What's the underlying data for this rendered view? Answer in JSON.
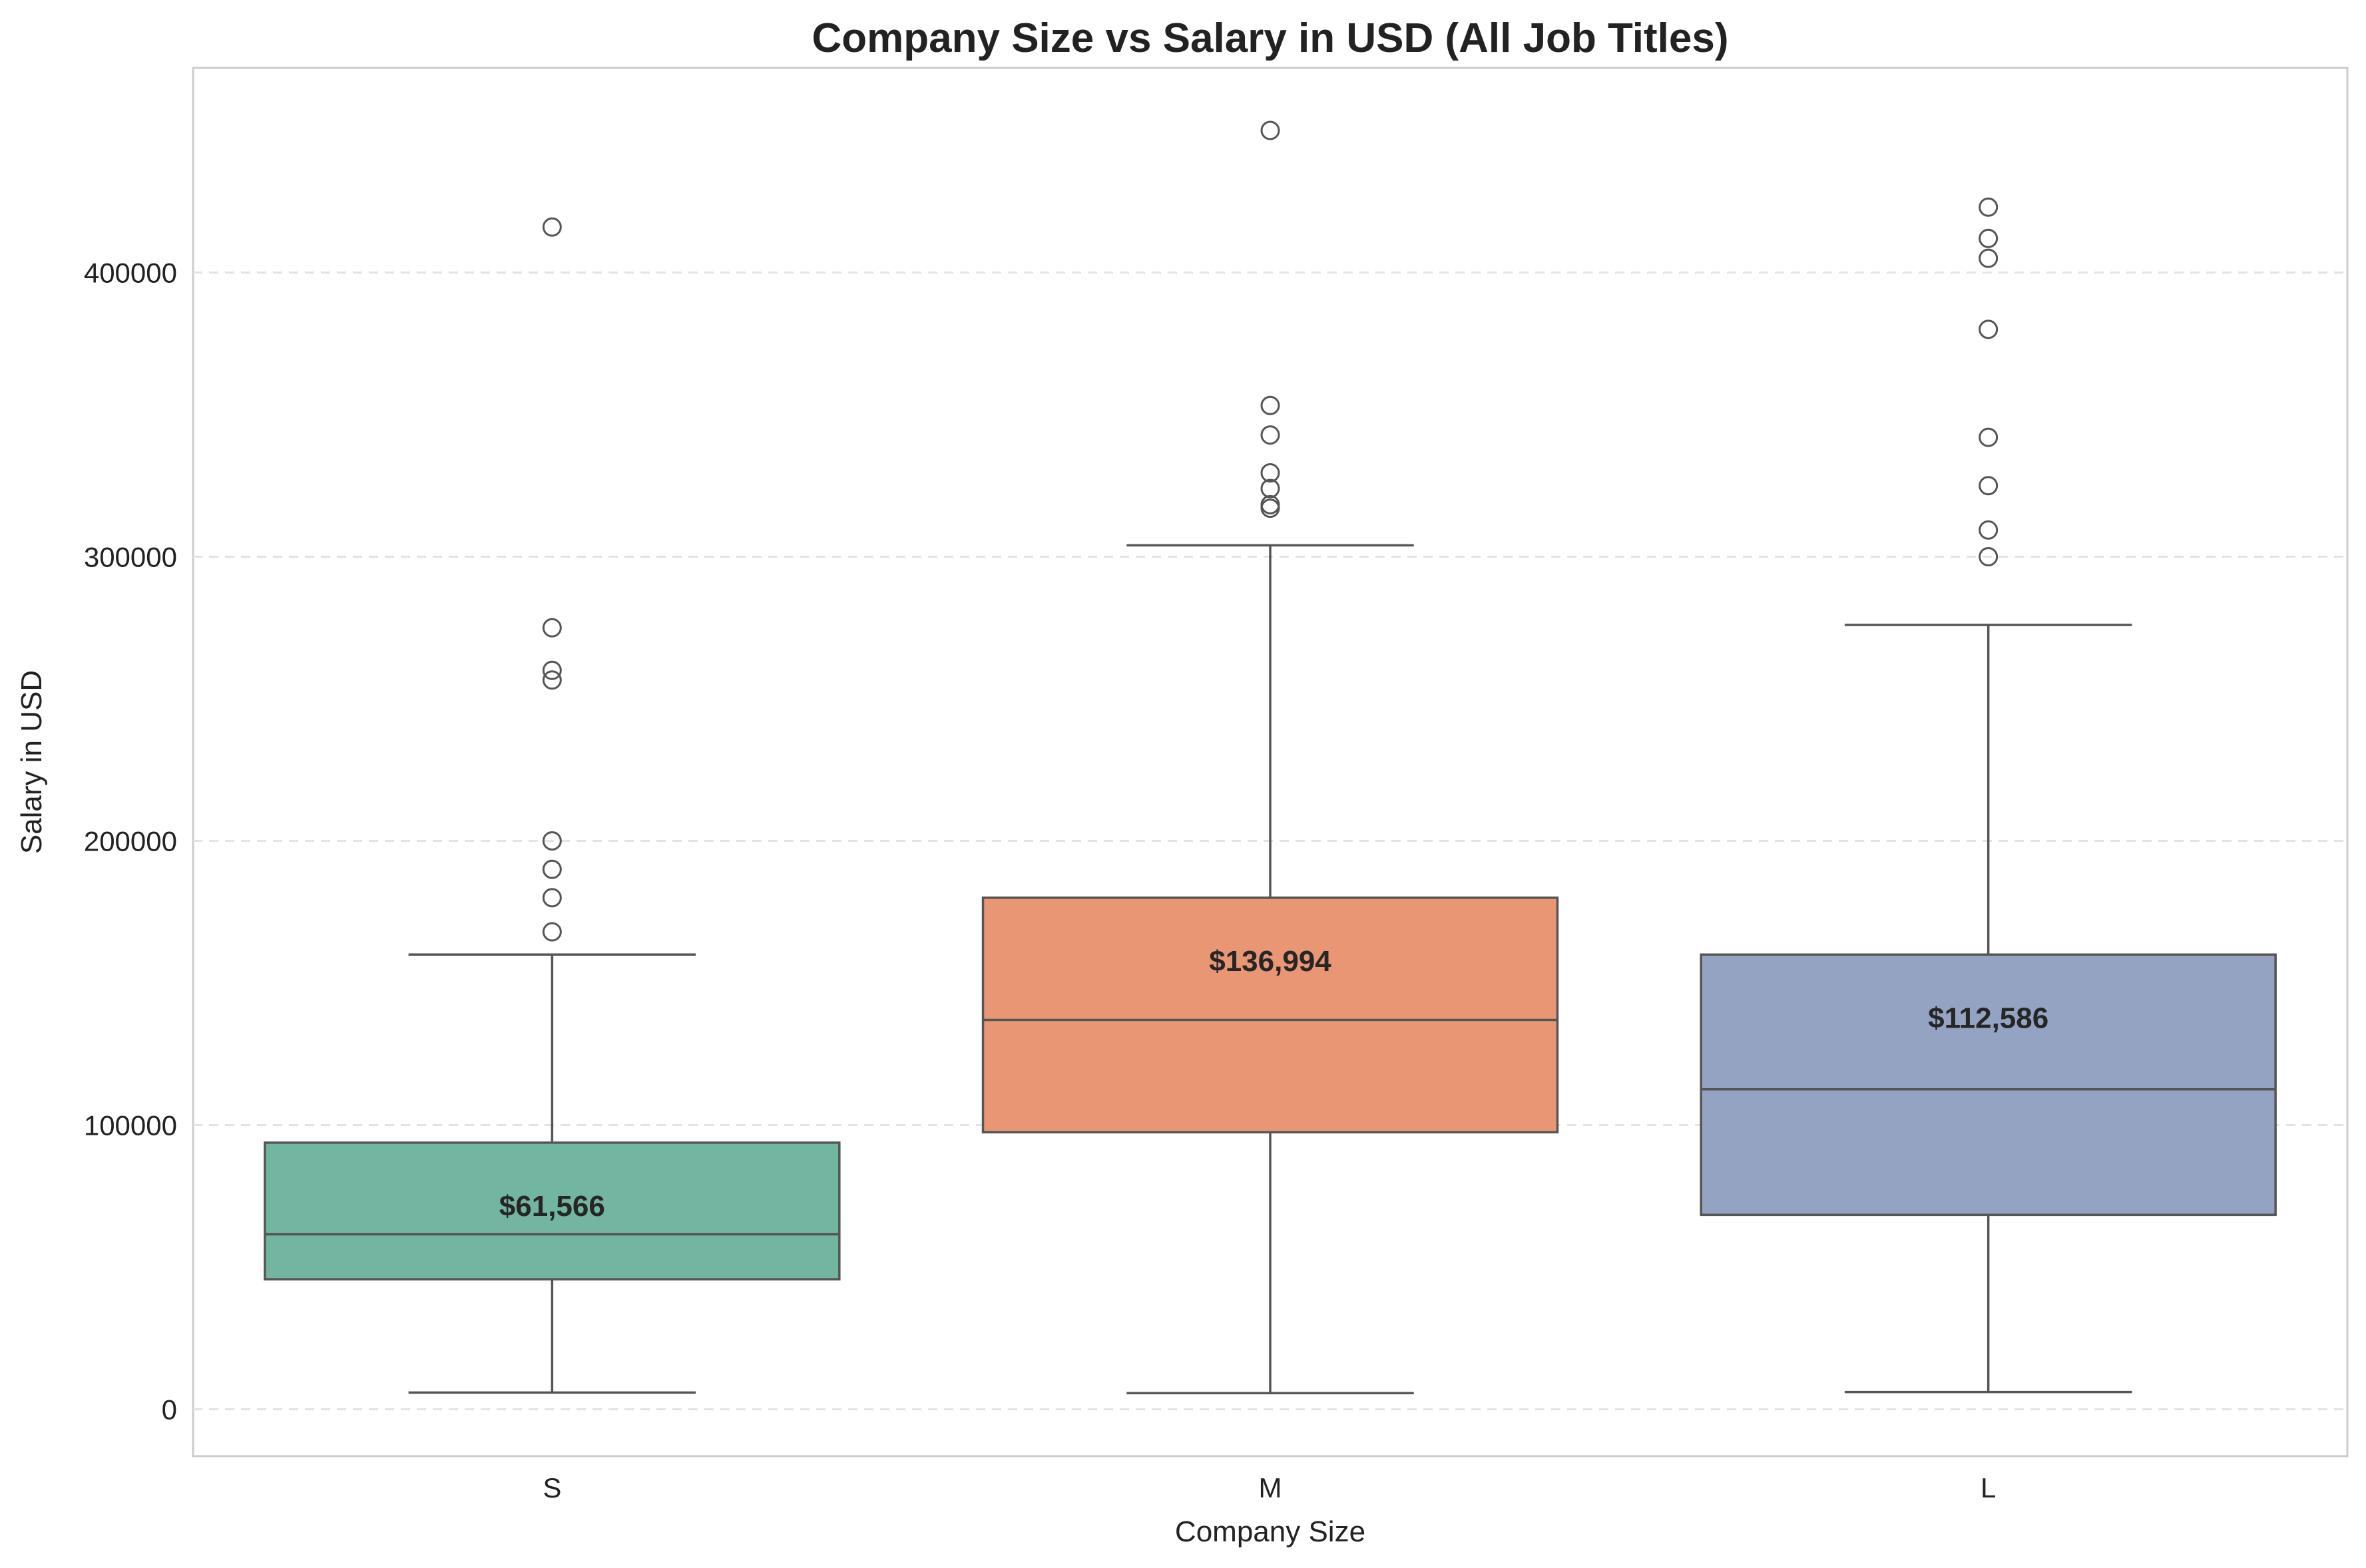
{
  "chart_data": {
    "type": "box",
    "title": "Company Size vs Salary in USD (All Job Titles)",
    "xlabel": "Company Size",
    "ylabel": "Salary in USD",
    "ylim": [
      -16500,
      472000
    ],
    "yticks": [
      0,
      100000,
      200000,
      300000,
      400000
    ],
    "ytick_labels": [
      "0",
      "100000",
      "200000",
      "300000",
      "400000"
    ],
    "grid": "y-dashed",
    "categories": [
      "S",
      "M",
      "L"
    ],
    "boxes": [
      {
        "category": "S",
        "color": "#72b6a1",
        "whisker_low": 5882,
        "q1": 45757,
        "median": 61566,
        "q3": 93818,
        "whisker_high": 160000,
        "median_label": "$61,566",
        "outliers": [
          416000,
          275000,
          260000,
          256600,
          200000,
          190000,
          180000,
          168000
        ]
      },
      {
        "category": "M",
        "color": "#e99675",
        "whisker_low": 5679,
        "q1": 97500,
        "median": 136994,
        "q3": 180000,
        "whisker_high": 304000,
        "median_label": "$136,994",
        "outliers": [
          450000,
          353200,
          342810,
          329500,
          324000,
          318300,
          317070
        ]
      },
      {
        "category": "L",
        "color": "#95a3c3",
        "whisker_low": 6072,
        "q1": 68428,
        "median": 112586,
        "q3": 160000,
        "whisker_high": 276000,
        "median_label": "$112,586",
        "outliers": [
          423000,
          412000,
          405000,
          380000,
          342000,
          325000,
          309400,
          300000
        ]
      }
    ]
  }
}
